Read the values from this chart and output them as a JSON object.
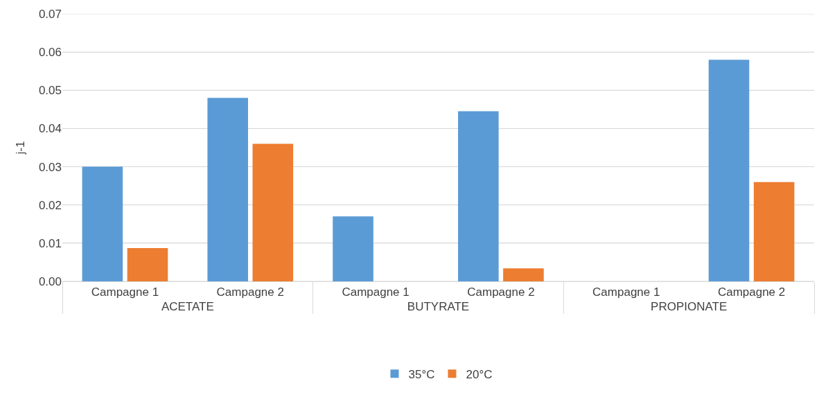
{
  "chart_data": {
    "type": "bar",
    "ylabel": "j-1",
    "categories": [
      "Campagne 1",
      "Campagne 2",
      "Campagne 1",
      "Campagne 2",
      "Campagne 1",
      "Campagne 2"
    ],
    "annotations": [
      "ACETATE",
      "BUTYRATE",
      "PROPIONATE"
    ],
    "series": [
      {
        "name": "35°C",
        "color": "#5b9bd5",
        "values": [
          0.03,
          0.048,
          0.017,
          0.0445,
          null,
          0.058
        ]
      },
      {
        "name": "20°C",
        "color": "#ed7d31",
        "values": [
          0.0087,
          0.036,
          null,
          0.0034,
          null,
          0.026
        ]
      }
    ],
    "ylim": [
      0,
      0.07
    ],
    "yticks": [
      {
        "value": 0,
        "label": "0.00"
      },
      {
        "value": 0.01,
        "label": "0.01"
      },
      {
        "value": 0.02,
        "label": "0.02"
      },
      {
        "value": 0.03,
        "label": "0.03"
      },
      {
        "value": 0.04,
        "label": "0.04"
      },
      {
        "value": 0.05,
        "label": "0.05"
      },
      {
        "value": 0.06,
        "label": "0.06"
      },
      {
        "value": 0.07,
        "label": "0.07"
      }
    ],
    "grid": "y",
    "legend": "bottom"
  }
}
